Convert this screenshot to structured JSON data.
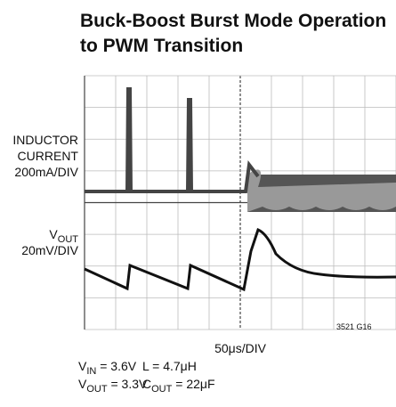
{
  "header": {
    "title_lines": [
      "Buck-Boost Burst Mode Operation",
      "to PWM Transition"
    ]
  },
  "trace_labels": {
    "current": [
      "INDUCTOR",
      "CURRENT",
      "200mA/DIV"
    ],
    "vout": {
      "main": "V",
      "sub": "OUT",
      "scale": "20mV/DIV"
    }
  },
  "figure_id": "3521 G16",
  "time_scale": "50μs/DIV",
  "conditions": [
    {
      "main": "V",
      "sub": "IN",
      "rest": " = 3.6V"
    },
    {
      "main": "L = 4.7μH"
    },
    {
      "main": "V",
      "sub": "OUT",
      "rest": " = 3.3V"
    },
    {
      "main": "C",
      "sub": "OUT",
      "rest": " = 22μF"
    }
  ]
}
